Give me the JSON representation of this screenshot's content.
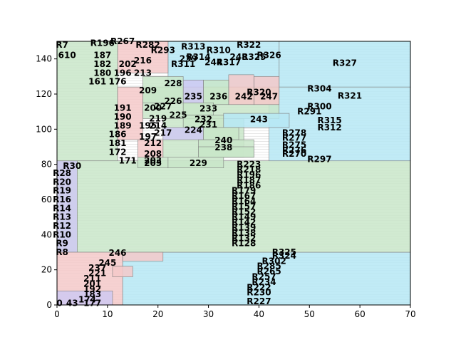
{
  "chart_data": {
    "type": "treemap",
    "xlim": [
      0,
      70
    ],
    "ylim": [
      0,
      150
    ],
    "x_ticks": [
      "0",
      "10",
      "20",
      "30",
      "40",
      "50",
      "60",
      "70"
    ],
    "y_ticks": [
      "0",
      "20",
      "40",
      "60",
      "80",
      "100",
      "120",
      "140"
    ],
    "colors": {
      "pink": "#f4c9c9",
      "green": "#c9e6c9",
      "cyan": "#b6e8f4",
      "lavender": "#cfc9f2"
    },
    "rects": [
      {
        "x0": 13,
        "x1": 70,
        "y0": 0,
        "y1": 30,
        "color": "cyan",
        "label": "",
        "lx": 0,
        "ly": 0
      },
      {
        "x0": 0,
        "x1": 70,
        "y0": 30,
        "y1": 82,
        "color": "green",
        "label": "",
        "lx": 0,
        "ly": 0
      },
      {
        "x0": 42,
        "x1": 70,
        "y0": 82,
        "y1": 124,
        "color": "cyan",
        "label": "",
        "lx": 0,
        "ly": 0
      },
      {
        "x0": 44,
        "x1": 70,
        "y0": 124,
        "y1": 150,
        "color": "cyan",
        "label": "R327",
        "lx": 57,
        "ly": 136
      },
      {
        "x0": 21,
        "x1": 37,
        "y0": 84,
        "y1": 106,
        "color": "green",
        "label": "",
        "lx": 0,
        "ly": 0
      },
      {
        "x0": 17,
        "x1": 44,
        "y0": 106,
        "y1": 124,
        "color": "green",
        "label": "",
        "lx": 0,
        "ly": 0
      },
      {
        "x0": 22,
        "x1": 44,
        "y0": 124,
        "y1": 150,
        "color": "cyan",
        "label": "",
        "lx": 0,
        "ly": 0
      },
      {
        "x0": 39,
        "x1": 44,
        "y0": 114,
        "y1": 130,
        "color": "pink",
        "label": "247",
        "lx": 42,
        "ly": 117
      },
      {
        "x0": 34,
        "x1": 39,
        "y0": 114,
        "y1": 131,
        "color": "pink",
        "label": "242",
        "lx": 37,
        "ly": 117
      },
      {
        "x0": 29,
        "x1": 34,
        "y0": 114,
        "y1": 128,
        "color": "green",
        "label": "236",
        "lx": 32,
        "ly": 117
      },
      {
        "x0": 25,
        "x1": 29,
        "y0": 115,
        "y1": 128,
        "color": "lavender",
        "label": "235",
        "lx": 27,
        "ly": 117
      },
      {
        "x0": 25,
        "x1": 31,
        "y0": 108,
        "y1": 115,
        "color": "green",
        "label": "233",
        "lx": 30,
        "ly": 110
      },
      {
        "x0": 25,
        "x1": 33,
        "y0": 101,
        "y1": 108,
        "color": "green",
        "label": "232",
        "lx": 29,
        "ly": 104
      },
      {
        "x0": 33,
        "x1": 46,
        "y0": 101,
        "y1": 109,
        "color": "cyan",
        "label": "243",
        "lx": 40,
        "ly": 104
      },
      {
        "x0": 21,
        "x1": 29,
        "y0": 94,
        "y1": 101,
        "color": "lavender",
        "label": "224",
        "lx": 27,
        "ly": 98
      },
      {
        "x0": 29,
        "x1": 36,
        "y0": 94,
        "y1": 101,
        "color": "green",
        "label": "231",
        "lx": 30,
        "ly": 101
      },
      {
        "x0": 28,
        "x1": 39,
        "y0": 84,
        "y1": 94,
        "color": "green",
        "label": "240",
        "lx": 33,
        "ly": 92
      },
      {
        "x0": 28,
        "x1": 39,
        "y0": 84,
        "y1": 90,
        "color": "green",
        "label": "238",
        "lx": 33,
        "ly": 88
      },
      {
        "x0": 16,
        "x1": 21,
        "y0": 84,
        "y1": 94,
        "color": "pink",
        "label": "197",
        "lx": 18,
        "ly": 94
      },
      {
        "x0": 16,
        "x1": 22,
        "y0": 78,
        "y1": 84,
        "color": "green",
        "label": "205",
        "lx": 19,
        "ly": 79
      },
      {
        "x0": 22,
        "x1": 33,
        "y0": 78,
        "y1": 84,
        "color": "green",
        "label": "229",
        "lx": 28,
        "ly": 79
      },
      {
        "x0": 0,
        "x1": 4,
        "y0": 30,
        "y1": 82,
        "color": "lavender",
        "label": "",
        "lx": 0,
        "ly": 0
      },
      {
        "x0": 0,
        "x1": 13,
        "y0": 0,
        "y1": 30,
        "color": "pink",
        "label": "",
        "lx": 0,
        "ly": 0
      },
      {
        "x0": 13,
        "x1": 21,
        "y0": 25,
        "y1": 30,
        "color": "pink",
        "label": "246",
        "lx": 12,
        "ly": 28
      },
      {
        "x0": 11,
        "x1": 15,
        "y0": 16,
        "y1": 22,
        "color": "pink",
        "label": "",
        "lx": 0,
        "ly": 0
      },
      {
        "x0": 0,
        "x1": 11,
        "y0": 0,
        "y1": 8,
        "color": "lavender",
        "label": "",
        "lx": 0,
        "ly": 0
      },
      {
        "x0": 12,
        "x1": 22,
        "y0": 132,
        "y1": 150,
        "color": "pink",
        "label": "",
        "lx": 0,
        "ly": 0
      },
      {
        "x0": 0,
        "x1": 12,
        "y0": 82,
        "y1": 150,
        "color": "green",
        "label": "",
        "lx": 0,
        "ly": 0
      },
      {
        "x0": 12,
        "x1": 17,
        "y0": 94,
        "y1": 124,
        "color": "pink",
        "label": "",
        "lx": 0,
        "ly": 0
      },
      {
        "x0": 17,
        "x1": 25,
        "y0": 115,
        "y1": 130,
        "color": "green",
        "label": "",
        "lx": 0,
        "ly": 0
      }
    ],
    "extra_labels": [
      {
        "t": "R322",
        "x": 38,
        "y": 148
      },
      {
        "t": "R313",
        "x": 27,
        "y": 147
      },
      {
        "t": "R310",
        "x": 32,
        "y": 145
      },
      {
        "t": "R314",
        "x": 28,
        "y": 141
      },
      {
        "t": "R317",
        "x": 34,
        "y": 138
      },
      {
        "t": "R326",
        "x": 42,
        "y": 142
      },
      {
        "t": "R325",
        "x": 39,
        "y": 141
      },
      {
        "t": "248",
        "x": 36,
        "y": 141
      },
      {
        "t": "244",
        "x": 31,
        "y": 138
      },
      {
        "t": "239",
        "x": 26,
        "y": 140
      },
      {
        "t": "R311",
        "x": 25,
        "y": 137
      },
      {
        "t": "R320",
        "x": 40,
        "y": 121
      },
      {
        "t": "R304",
        "x": 52,
        "y": 123
      },
      {
        "t": "R321",
        "x": 58,
        "y": 119
      },
      {
        "t": "R300",
        "x": 52,
        "y": 113
      },
      {
        "t": "R291",
        "x": 50,
        "y": 110
      },
      {
        "t": "R315",
        "x": 54,
        "y": 105
      },
      {
        "t": "R312",
        "x": 54,
        "y": 101
      },
      {
        "t": "R278",
        "x": 47,
        "y": 98
      },
      {
        "t": "R277",
        "x": 47,
        "y": 95
      },
      {
        "t": "R275",
        "x": 47,
        "y": 91
      },
      {
        "t": "R276",
        "x": 47,
        "y": 88
      },
      {
        "t": "R270",
        "x": 47,
        "y": 86
      },
      {
        "t": "R297",
        "x": 52,
        "y": 83
      },
      {
        "t": "R223",
        "x": 38,
        "y": 80
      },
      {
        "t": "R218",
        "x": 38,
        "y": 77
      },
      {
        "t": "R196",
        "x": 38,
        "y": 74
      },
      {
        "t": "R187",
        "x": 38,
        "y": 71
      },
      {
        "t": "R186",
        "x": 38,
        "y": 68
      },
      {
        "t": "R179",
        "x": 37,
        "y": 65
      },
      {
        "t": "R167",
        "x": 37,
        "y": 62
      },
      {
        "t": "R164",
        "x": 37,
        "y": 59
      },
      {
        "t": "R157",
        "x": 37,
        "y": 56
      },
      {
        "t": "R152",
        "x": 37,
        "y": 53
      },
      {
        "t": "R149",
        "x": 37,
        "y": 50
      },
      {
        "t": "R142",
        "x": 37,
        "y": 47
      },
      {
        "t": "R139",
        "x": 37,
        "y": 44
      },
      {
        "t": "R138",
        "x": 37,
        "y": 41
      },
      {
        "t": "R132",
        "x": 37,
        "y": 38
      },
      {
        "t": "R128",
        "x": 37,
        "y": 35
      },
      {
        "t": "R325",
        "x": 45,
        "y": 30
      },
      {
        "t": "R324",
        "x": 45,
        "y": 28
      },
      {
        "t": "R302",
        "x": 43,
        "y": 25
      },
      {
        "t": "R285",
        "x": 42,
        "y": 22
      },
      {
        "t": "R265",
        "x": 42,
        "y": 19
      },
      {
        "t": "R257",
        "x": 41,
        "y": 16
      },
      {
        "t": "R234",
        "x": 41,
        "y": 13
      },
      {
        "t": "R222",
        "x": 40,
        "y": 10
      },
      {
        "t": "R230",
        "x": 40,
        "y": 7
      },
      {
        "t": "R227",
        "x": 40,
        "y": 2
      },
      {
        "t": "R196",
        "x": 9,
        "y": 149
      },
      {
        "t": "R267",
        "x": 13,
        "y": 150
      },
      {
        "t": "R282",
        "x": 18,
        "y": 148
      },
      {
        "t": "216",
        "x": 17,
        "y": 139
      },
      {
        "t": "213",
        "x": 17,
        "y": 132
      },
      {
        "t": "228",
        "x": 23,
        "y": 126
      },
      {
        "t": "209",
        "x": 18,
        "y": 122
      },
      {
        "t": "226",
        "x": 23,
        "y": 116
      },
      {
        "t": "227",
        "x": 21,
        "y": 113
      },
      {
        "t": "225",
        "x": 24,
        "y": 108
      },
      {
        "t": "219",
        "x": 20,
        "y": 106
      },
      {
        "t": "200",
        "x": 19,
        "y": 112
      },
      {
        "t": "214",
        "x": 20,
        "y": 102
      },
      {
        "t": "217",
        "x": 21,
        "y": 98
      },
      {
        "t": "212",
        "x": 19,
        "y": 92
      },
      {
        "t": "208",
        "x": 19,
        "y": 86
      },
      {
        "t": "R293",
        "x": 21,
        "y": 145
      },
      {
        "t": "R7",
        "x": 1,
        "y": 148
      },
      {
        "t": "610",
        "x": 2,
        "y": 142
      },
      {
        "t": "187",
        "x": 9,
        "y": 142
      },
      {
        "t": "182",
        "x": 9,
        "y": 137
      },
      {
        "t": "202",
        "x": 14,
        "y": 137
      },
      {
        "t": "180",
        "x": 9,
        "y": 132
      },
      {
        "t": "196",
        "x": 13,
        "y": 132
      },
      {
        "t": "161",
        "x": 8,
        "y": 127
      },
      {
        "t": "176",
        "x": 12,
        "y": 127
      },
      {
        "t": "191",
        "x": 13,
        "y": 112
      },
      {
        "t": "190",
        "x": 13,
        "y": 107
      },
      {
        "t": "189",
        "x": 13,
        "y": 102
      },
      {
        "t": "195",
        "x": 18,
        "y": 102
      },
      {
        "t": "186",
        "x": 12,
        "y": 97
      },
      {
        "t": "181",
        "x": 12,
        "y": 92
      },
      {
        "t": "172",
        "x": 12,
        "y": 87
      },
      {
        "t": "171",
        "x": 14,
        "y": 82
      },
      {
        "t": "203",
        "x": 19,
        "y": 82
      },
      {
        "t": "R30",
        "x": 3,
        "y": 79
      },
      {
        "t": "R28",
        "x": 1,
        "y": 75
      },
      {
        "t": "R20",
        "x": 1,
        "y": 70
      },
      {
        "t": "R19",
        "x": 1,
        "y": 65
      },
      {
        "t": "R16",
        "x": 1,
        "y": 60
      },
      {
        "t": "R14",
        "x": 1,
        "y": 55
      },
      {
        "t": "R13",
        "x": 1,
        "y": 50
      },
      {
        "t": "R12",
        "x": 1,
        "y": 45
      },
      {
        "t": "R10",
        "x": 1,
        "y": 40
      },
      {
        "t": "R9",
        "x": 1,
        "y": 35
      },
      {
        "t": "R8",
        "x": 1,
        "y": 30
      },
      {
        "t": "245",
        "x": 10,
        "y": 24
      },
      {
        "t": "237",
        "x": 8,
        "y": 21
      },
      {
        "t": "221",
        "x": 8,
        "y": 18
      },
      {
        "t": "211",
        "x": 7,
        "y": 15
      },
      {
        "t": "201",
        "x": 7,
        "y": 12
      },
      {
        "t": "192",
        "x": 7,
        "y": 9
      },
      {
        "t": "183",
        "x": 7,
        "y": 6
      },
      {
        "t": "177",
        "x": 7,
        "y": 1
      },
      {
        "t": "174",
        "x": 6,
        "y": 3
      },
      {
        "t": "0",
        "x": 0.5,
        "y": 1
      },
      {
        "t": "43",
        "x": 3,
        "y": 1
      }
    ]
  }
}
